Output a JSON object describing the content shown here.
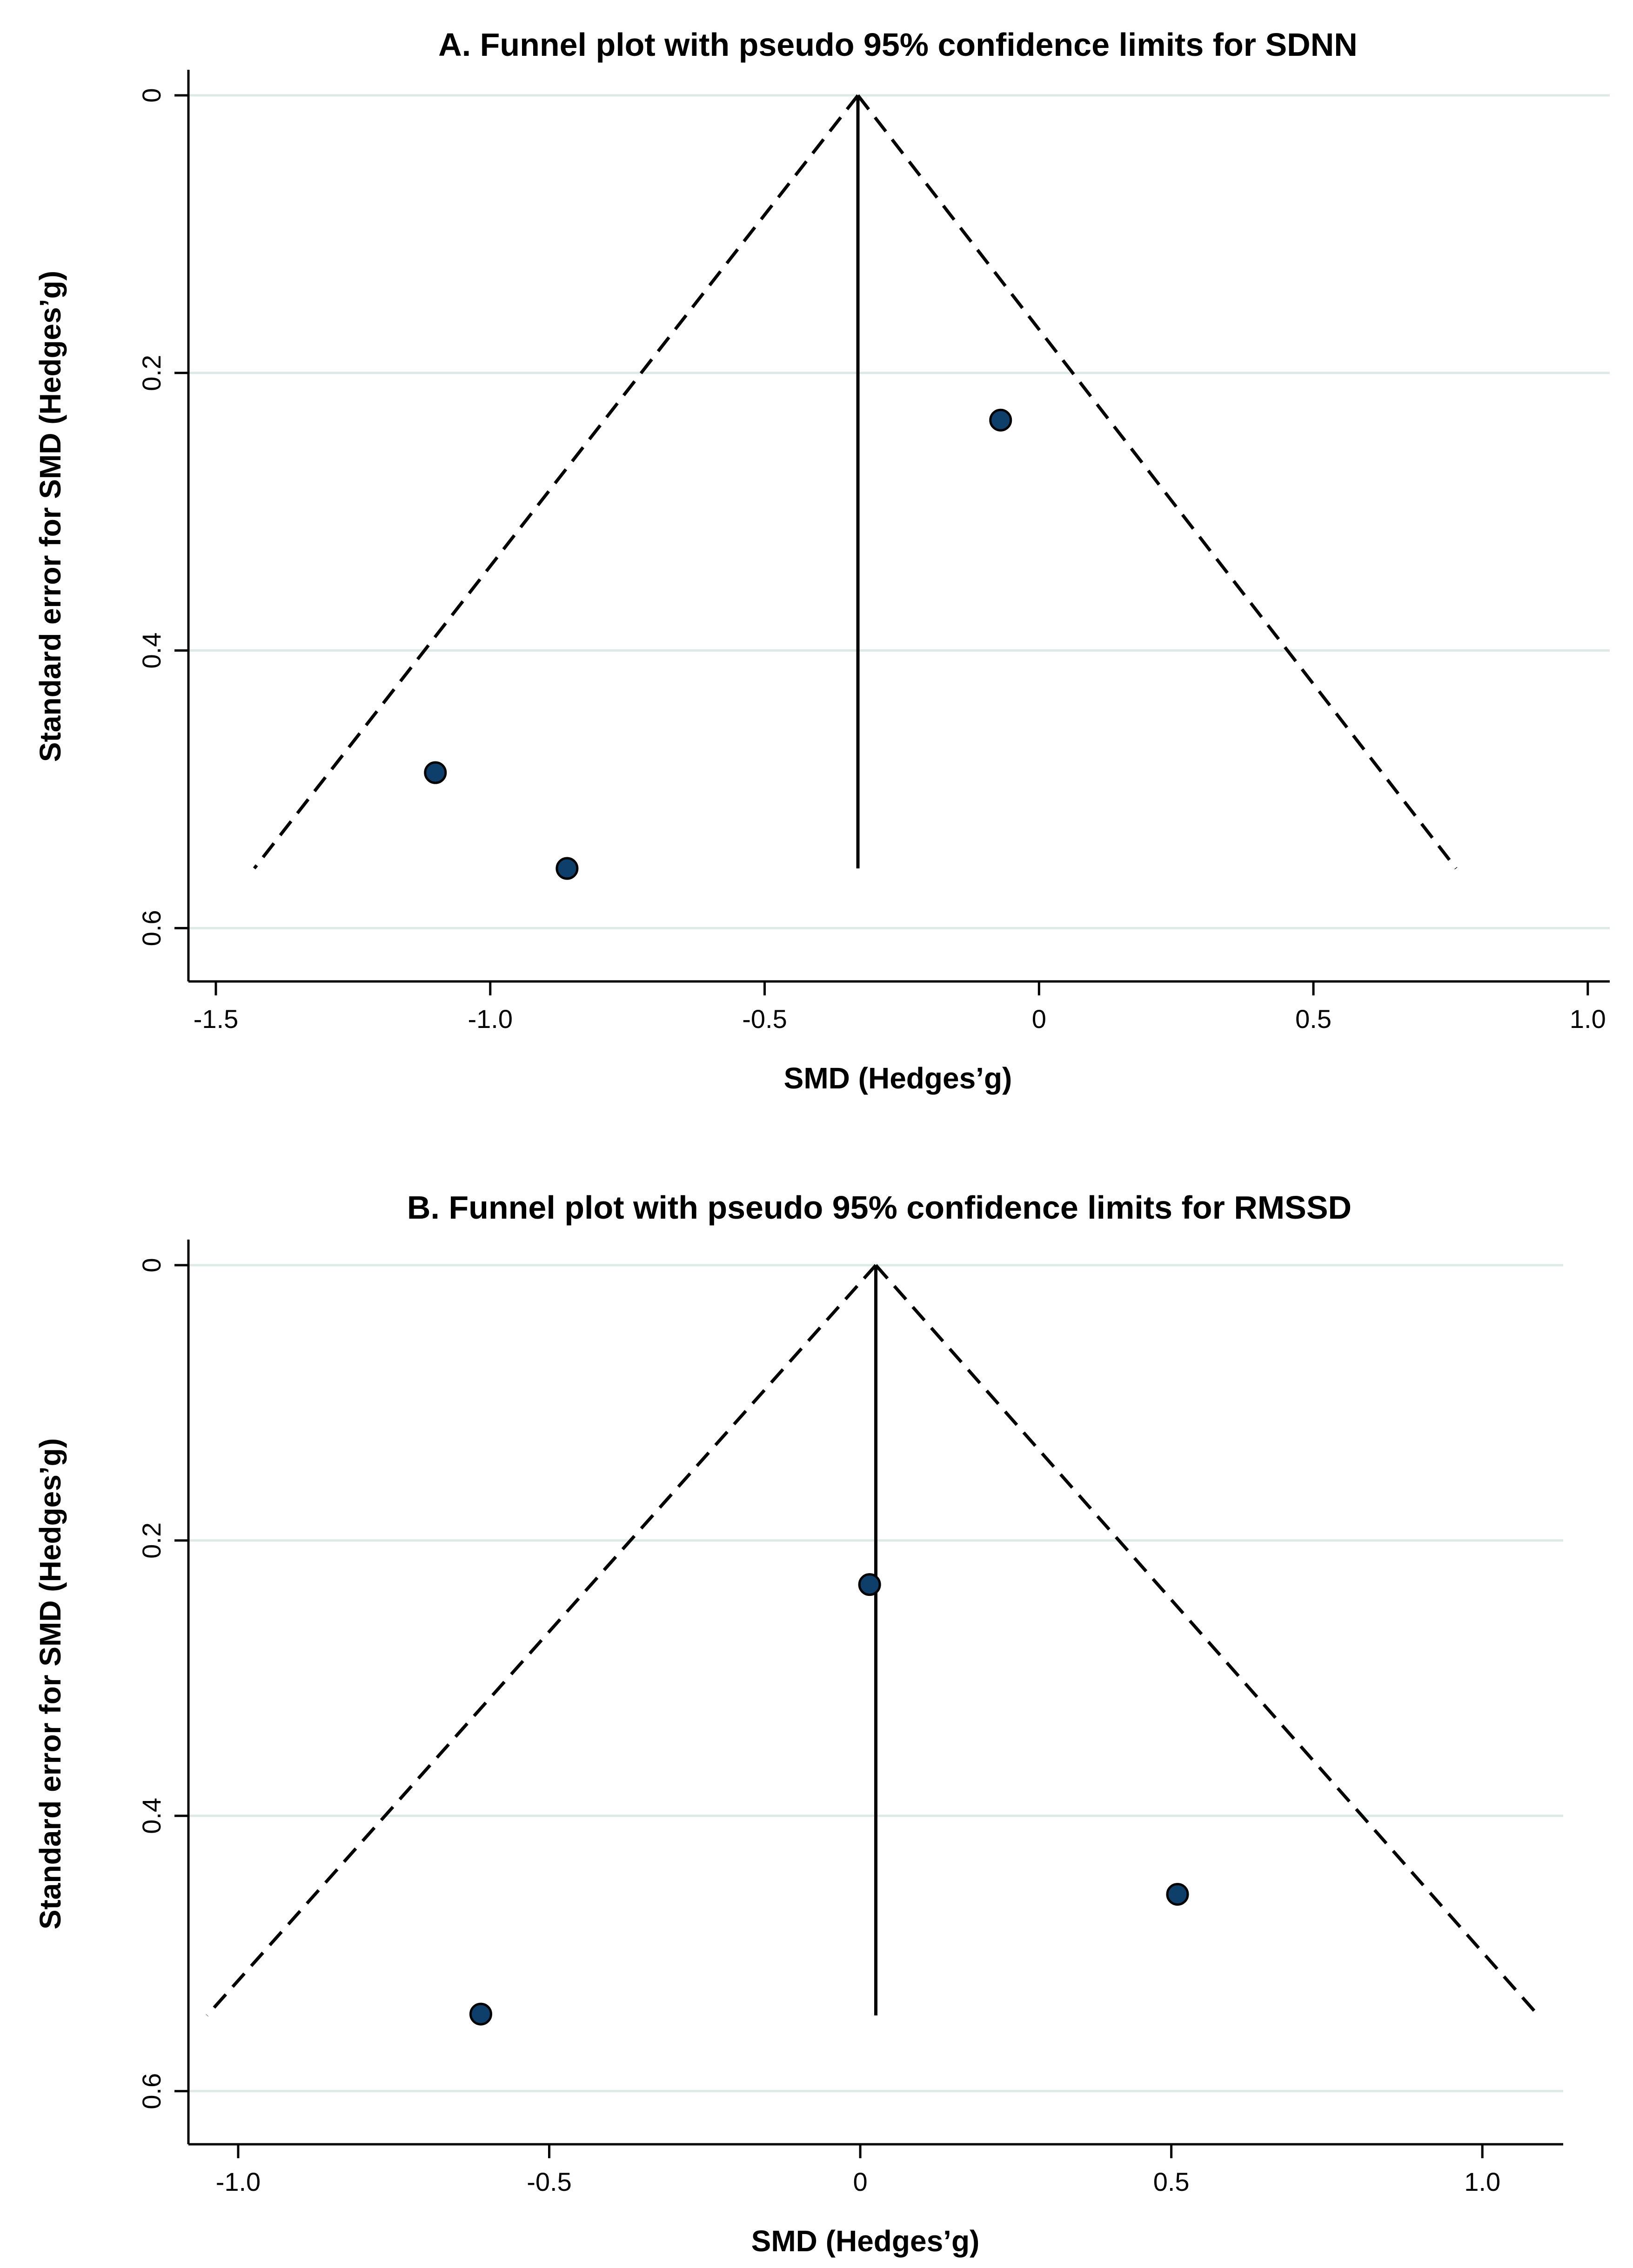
{
  "colors": {
    "grid": "#dce9e6",
    "axis": "#000000",
    "marker": "#0e3f6b",
    "marker_stroke": "#000000"
  },
  "chart_data": [
    {
      "type": "scatter",
      "title": "A. Funnel plot with pseudo 95% confidence limits for SDNN",
      "xlabel": "SMD (Hedges’g)",
      "ylabel": "Standard error for SMD (Hedges’g)",
      "xlim": [
        -1.55,
        1.04
      ],
      "ylim": [
        0,
        0.62
      ],
      "y_inverted": true,
      "grid": true,
      "x_ticks": [
        -1.5,
        -1.0,
        -0.5,
        0,
        0.5,
        1.0
      ],
      "x_tick_labels": [
        "-1.5",
        "-1.0",
        "-0.5",
        "0",
        "0.5",
        "1.0"
      ],
      "y_ticks": [
        0,
        0.2,
        0.4,
        0.6
      ],
      "y_tick_labels": [
        "0",
        "0.2",
        "0.4",
        "0.6"
      ],
      "pooled_effect": -0.33,
      "funnel": {
        "apex": [
          -0.33,
          0
        ],
        "left_base": [
          -1.43,
          0.557
        ],
        "right_base": [
          0.76,
          0.557
        ]
      },
      "points": [
        {
          "x": -0.07,
          "y": 0.234
        },
        {
          "x": -1.1,
          "y": 0.488
        },
        {
          "x": -0.86,
          "y": 0.557
        }
      ]
    },
    {
      "type": "scatter",
      "title": "B. Funnel plot with pseudo 95% confidence limits for RMSSD",
      "xlabel": "SMD (Hedges’g)",
      "ylabel": "Standard error for SMD (Hedges’g)",
      "xlim": [
        -1.08,
        1.13
      ],
      "ylim": [
        0,
        0.62
      ],
      "y_inverted": true,
      "grid": true,
      "x_ticks": [
        -1.0,
        -0.5,
        0,
        0.5,
        1.0
      ],
      "x_tick_labels": [
        "-1.0",
        "-0.5",
        "0",
        "0.5",
        "1.0"
      ],
      "y_ticks": [
        0,
        0.2,
        0.4,
        0.6
      ],
      "y_tick_labels": [
        "0",
        "0.2",
        "0.4",
        "0.6"
      ],
      "pooled_effect": 0.025,
      "funnel": {
        "apex": [
          0.025,
          0
        ],
        "left_base": [
          -1.05,
          0.545
        ],
        "right_base": [
          1.09,
          0.545
        ]
      },
      "points": [
        {
          "x": 0.015,
          "y": 0.232
        },
        {
          "x": 0.51,
          "y": 0.457
        },
        {
          "x": -0.61,
          "y": 0.544
        }
      ]
    }
  ]
}
